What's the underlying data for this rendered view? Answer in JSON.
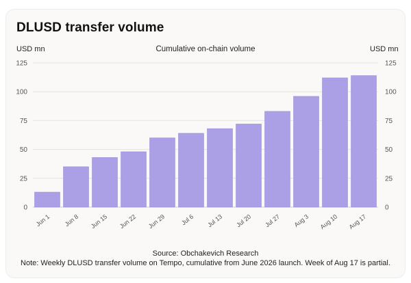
{
  "chart_data": {
    "type": "bar",
    "title": "DLUSD transfer volume",
    "subtitle": "Cumulative on-chain volume",
    "ylabel_left": "USD mn",
    "ylabel_right": "USD mn",
    "categories": [
      "Jun 1",
      "Jun 8",
      "Jun 15",
      "Jun 22",
      "Jun 29",
      "Jul 6",
      "Jul 13",
      "Jul 20",
      "Jul 27",
      "Aug 3",
      "Aug 10",
      "Aug 17"
    ],
    "values": [
      13,
      35,
      43,
      48,
      60,
      64,
      68,
      72,
      83,
      96,
      112,
      114
    ],
    "ylim": [
      0,
      125
    ],
    "yticks": [
      0,
      25,
      50,
      75,
      100,
      125
    ],
    "grid": true,
    "bar_color": "#ab9fe6",
    "bar_edge_color": "#9a8dd9",
    "source": "Source: Obchakevich Research",
    "note": "Note: Weekly DLUSD transfer volume on Tempo, cumulative from June 2026 launch. Week of Aug 17 is partial."
  }
}
